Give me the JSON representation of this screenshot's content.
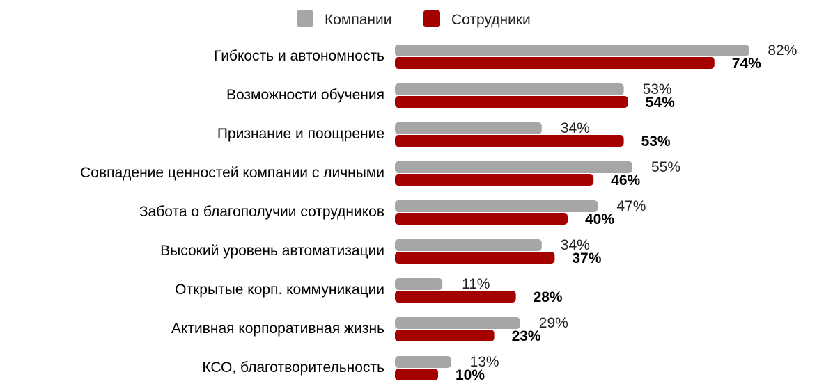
{
  "chart_data": {
    "type": "bar",
    "orientation": "horizontal",
    "legend_position": "top",
    "grid": false,
    "xlim": [
      0,
      100
    ],
    "value_suffix": "%",
    "categories": [
      "Гибкость и автономность",
      "Возможности обучения",
      "Признание и поощрение",
      "Совпадение ценностей компании с личными",
      "Забота о благополучии сотрудников",
      "Высокий уровень автоматизации",
      "Открытые корп. коммуникации",
      "Активная корпоративная жизнь",
      "КСО, благотворительность"
    ],
    "series": [
      {
        "name": "Компании",
        "color": "#a6a6a6",
        "values": [
          82,
          53,
          34,
          55,
          47,
          34,
          11,
          29,
          13
        ]
      },
      {
        "name": "Сотрудники",
        "color": "#a50000",
        "values": [
          74,
          54,
          53,
          46,
          40,
          37,
          28,
          23,
          10
        ]
      }
    ]
  }
}
